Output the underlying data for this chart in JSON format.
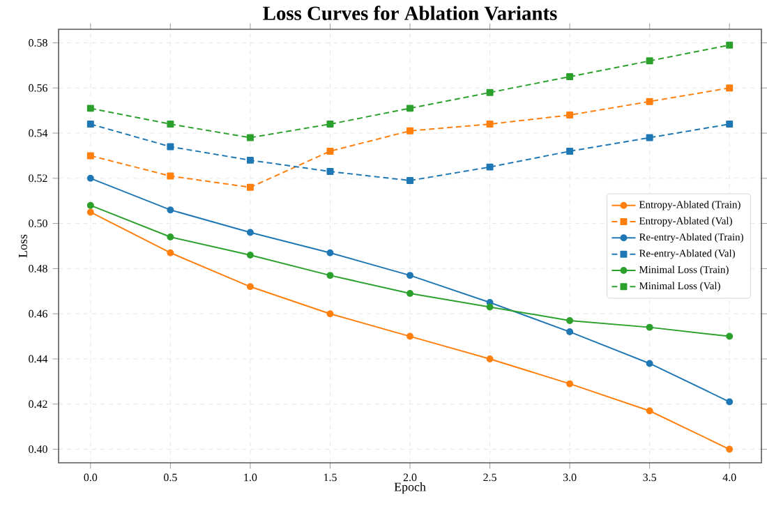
{
  "chart_data": {
    "type": "line",
    "title": "Loss Curves for Ablation Variants",
    "xlabel": "Epoch",
    "ylabel": "Loss",
    "x": [
      0.0,
      0.5,
      1.0,
      1.5,
      2.0,
      2.5,
      3.0,
      3.5,
      4.0
    ],
    "series": [
      {
        "name": "Entropy-Ablated (Train)",
        "color": "#ff7f0e",
        "marker": "circle",
        "line_style": "solid",
        "values": [
          0.505,
          0.487,
          0.472,
          0.46,
          0.45,
          0.44,
          0.429,
          0.417,
          0.4
        ]
      },
      {
        "name": "Entropy-Ablated (Val)",
        "color": "#ff7f0e",
        "marker": "square",
        "line_style": "dashed",
        "values": [
          0.53,
          0.521,
          0.516,
          0.532,
          0.541,
          0.544,
          0.548,
          0.554,
          0.56
        ]
      },
      {
        "name": "Re-entry-Ablated (Train)",
        "color": "#1f77b4",
        "marker": "circle",
        "line_style": "solid",
        "values": [
          0.52,
          0.506,
          0.496,
          0.487,
          0.477,
          0.465,
          0.452,
          0.438,
          0.421
        ]
      },
      {
        "name": "Re-entry-Ablated (Val)",
        "color": "#1f77b4",
        "marker": "square",
        "line_style": "dashed",
        "values": [
          0.544,
          0.534,
          0.528,
          0.523,
          0.519,
          0.525,
          0.532,
          0.538,
          0.544
        ]
      },
      {
        "name": "Minimal Loss (Train)",
        "color": "#2ca02c",
        "marker": "circle",
        "line_style": "solid",
        "values": [
          0.508,
          0.494,
          0.486,
          0.477,
          0.469,
          0.463,
          0.457,
          0.454,
          0.45
        ]
      },
      {
        "name": "Minimal Loss (Val)",
        "color": "#2ca02c",
        "marker": "square",
        "line_style": "dashed",
        "values": [
          0.551,
          0.544,
          0.538,
          0.544,
          0.551,
          0.558,
          0.565,
          0.572,
          0.579
        ]
      }
    ],
    "xlim": [
      -0.2,
      4.2
    ],
    "ylim": [
      0.394,
      0.586
    ],
    "xticks": [
      {
        "value": 0.0,
        "label": "0.0"
      },
      0.5,
      {
        "value": 1.0,
        "label": "1.0"
      },
      1.5,
      {
        "value": 2.0,
        "label": "2.0"
      },
      2.5,
      {
        "value": 3.0,
        "label": "3.0"
      },
      3.5,
      {
        "value": 4.0,
        "label": "4.0"
      }
    ],
    "yticks": [
      {
        "value": 0.4,
        "label": "0.40"
      },
      0.42,
      0.44,
      0.46,
      0.48,
      {
        "value": 0.5,
        "label": "0.50"
      },
      0.52,
      0.54,
      0.56,
      0.58
    ],
    "grid": true,
    "legend": "right"
  }
}
